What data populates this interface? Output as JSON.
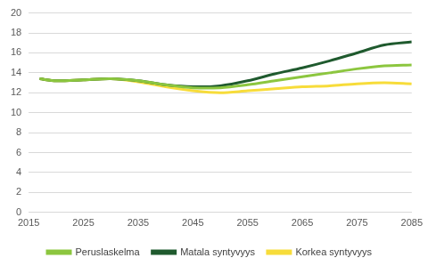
{
  "chart_data": {
    "type": "line",
    "x": [
      2017,
      2020,
      2025,
      2030,
      2035,
      2040,
      2045,
      2050,
      2055,
      2060,
      2065,
      2070,
      2075,
      2080,
      2085
    ],
    "series": [
      {
        "name": "Peruslaskelma",
        "color": "#8cc63f",
        "values": [
          13.4,
          13.2,
          13.3,
          13.4,
          13.2,
          12.8,
          12.5,
          12.5,
          12.8,
          13.2,
          13.6,
          14.0,
          14.4,
          14.7,
          14.8
        ]
      },
      {
        "name": "Matala syntyvyys",
        "color": "#1f5a2e",
        "values": [
          13.4,
          13.2,
          13.3,
          13.4,
          13.2,
          12.8,
          12.6,
          12.7,
          13.2,
          13.9,
          14.5,
          15.2,
          16.0,
          16.8,
          17.1
        ]
      },
      {
        "name": "Korkea syntyvyys",
        "color": "#f7dc3a",
        "values": [
          13.4,
          13.2,
          13.3,
          13.4,
          13.1,
          12.6,
          12.2,
          12.0,
          12.2,
          12.4,
          12.6,
          12.7,
          12.9,
          13.0,
          12.9
        ]
      }
    ],
    "xlim": [
      2015,
      2085
    ],
    "xticks": [
      2015,
      2025,
      2035,
      2045,
      2055,
      2065,
      2075,
      2085
    ],
    "ylim": [
      0,
      20
    ],
    "yticks": [
      0,
      2,
      4,
      6,
      8,
      10,
      12,
      14,
      16,
      18,
      20
    ],
    "grid": true,
    "legend": "bottom"
  }
}
